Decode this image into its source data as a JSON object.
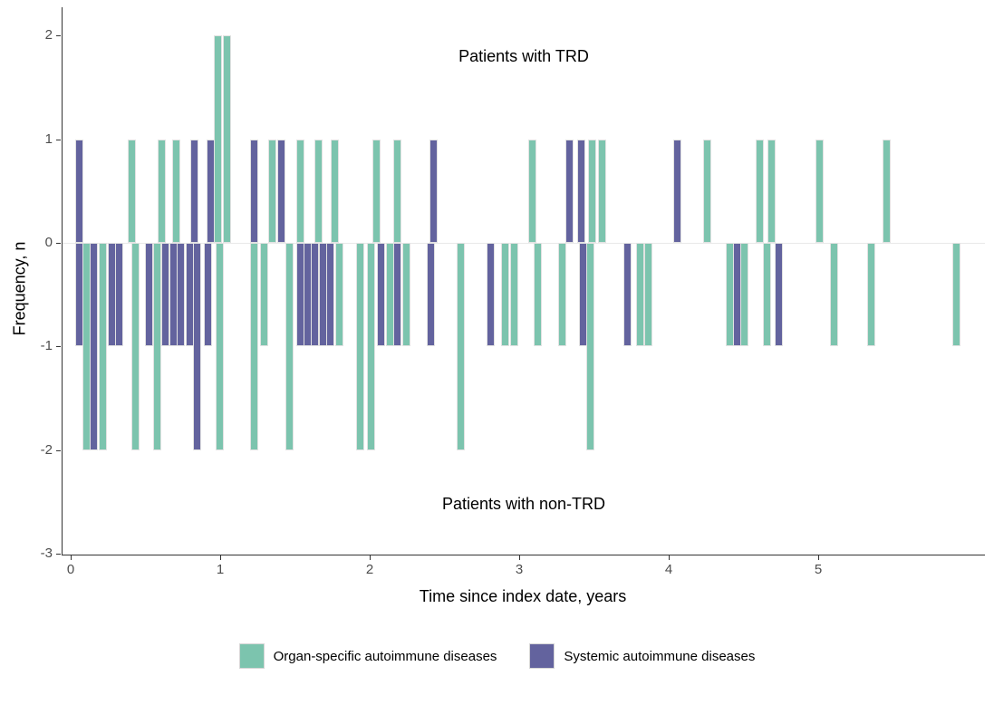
{
  "chart_data": {
    "type": "bar",
    "title": "",
    "xlabel": "Time since index date, years",
    "ylabel": "Frequency, n",
    "xlim": [
      0,
      6.15
    ],
    "ylim": [
      -3,
      2
    ],
    "grid": "off",
    "legend_position": "bottom",
    "x_ticks": [
      0,
      1,
      2,
      3,
      4,
      5
    ],
    "y_ticks": [
      2,
      1,
      0,
      -1,
      -2,
      -3
    ],
    "annotations": {
      "top": "Patients with TRD",
      "bottom": "Patients with non-TRD"
    },
    "legend": [
      {
        "key": "organ",
        "label": "Organ-specific autoimmune diseases",
        "color": "#7CC4AE"
      },
      {
        "key": "systemic",
        "label": "Systemic autoimmune diseases",
        "color": "#63639E"
      }
    ],
    "series_colors": {
      "organ": "#7CC4AE",
      "systemic": "#63639E"
    },
    "bars": [
      {
        "x": 0.05,
        "n": 1,
        "series": "systemic"
      },
      {
        "x": 0.4,
        "n": 1,
        "series": "organ"
      },
      {
        "x": 0.6,
        "n": 1,
        "series": "organ"
      },
      {
        "x": 0.7,
        "n": 1,
        "series": "organ"
      },
      {
        "x": 0.82,
        "n": 1,
        "series": "systemic"
      },
      {
        "x": 0.93,
        "n": 1,
        "series": "systemic"
      },
      {
        "x": 0.98,
        "n": 2,
        "series": "organ"
      },
      {
        "x": 1.04,
        "n": 2,
        "series": "organ"
      },
      {
        "x": 1.22,
        "n": 1,
        "series": "systemic"
      },
      {
        "x": 1.34,
        "n": 1,
        "series": "organ"
      },
      {
        "x": 1.4,
        "n": 1,
        "series": "systemic"
      },
      {
        "x": 1.53,
        "n": 1,
        "series": "organ"
      },
      {
        "x": 1.65,
        "n": 1,
        "series": "organ"
      },
      {
        "x": 1.76,
        "n": 1,
        "series": "organ"
      },
      {
        "x": 2.04,
        "n": 1,
        "series": "organ"
      },
      {
        "x": 2.18,
        "n": 1,
        "series": "organ"
      },
      {
        "x": 2.42,
        "n": 1,
        "series": "systemic"
      },
      {
        "x": 3.08,
        "n": 1,
        "series": "organ"
      },
      {
        "x": 3.33,
        "n": 1,
        "series": "systemic"
      },
      {
        "x": 3.41,
        "n": 1,
        "series": "systemic"
      },
      {
        "x": 3.48,
        "n": 1,
        "series": "organ"
      },
      {
        "x": 3.55,
        "n": 1,
        "series": "organ"
      },
      {
        "x": 4.05,
        "n": 1,
        "series": "systemic"
      },
      {
        "x": 4.25,
        "n": 1,
        "series": "organ"
      },
      {
        "x": 4.6,
        "n": 1,
        "series": "organ"
      },
      {
        "x": 4.68,
        "n": 1,
        "series": "organ"
      },
      {
        "x": 5.0,
        "n": 1,
        "series": "organ"
      },
      {
        "x": 5.45,
        "n": 1,
        "series": "organ"
      },
      {
        "x": 0.05,
        "n": -1,
        "series": "systemic"
      },
      {
        "x": 0.1,
        "n": -2,
        "series": "organ"
      },
      {
        "x": 0.15,
        "n": -2,
        "series": "systemic"
      },
      {
        "x": 0.21,
        "n": -2,
        "series": "organ"
      },
      {
        "x": 0.27,
        "n": -1,
        "series": "systemic"
      },
      {
        "x": 0.32,
        "n": -1,
        "series": "systemic"
      },
      {
        "x": 0.43,
        "n": -2,
        "series": "organ"
      },
      {
        "x": 0.52,
        "n": -1,
        "series": "systemic"
      },
      {
        "x": 0.57,
        "n": -2,
        "series": "organ"
      },
      {
        "x": 0.63,
        "n": -1,
        "series": "systemic"
      },
      {
        "x": 0.68,
        "n": -1,
        "series": "systemic"
      },
      {
        "x": 0.73,
        "n": -1,
        "series": "systemic"
      },
      {
        "x": 0.79,
        "n": -1,
        "series": "systemic"
      },
      {
        "x": 0.84,
        "n": -2,
        "series": "systemic"
      },
      {
        "x": 0.91,
        "n": -1,
        "series": "systemic"
      },
      {
        "x": 0.99,
        "n": -2,
        "series": "organ"
      },
      {
        "x": 1.22,
        "n": -2,
        "series": "organ"
      },
      {
        "x": 1.29,
        "n": -1,
        "series": "organ"
      },
      {
        "x": 1.46,
        "n": -2,
        "series": "organ"
      },
      {
        "x": 1.53,
        "n": -1,
        "series": "systemic"
      },
      {
        "x": 1.58,
        "n": -1,
        "series": "systemic"
      },
      {
        "x": 1.63,
        "n": -1,
        "series": "systemic"
      },
      {
        "x": 1.68,
        "n": -1,
        "series": "systemic"
      },
      {
        "x": 1.73,
        "n": -1,
        "series": "systemic"
      },
      {
        "x": 1.79,
        "n": -1,
        "series": "organ"
      },
      {
        "x": 1.93,
        "n": -2,
        "series": "organ"
      },
      {
        "x": 2.0,
        "n": -2,
        "series": "organ"
      },
      {
        "x": 2.07,
        "n": -1,
        "series": "systemic"
      },
      {
        "x": 2.13,
        "n": -1,
        "series": "organ"
      },
      {
        "x": 2.18,
        "n": -1,
        "series": "systemic"
      },
      {
        "x": 2.24,
        "n": -1,
        "series": "organ"
      },
      {
        "x": 2.4,
        "n": -1,
        "series": "systemic"
      },
      {
        "x": 2.6,
        "n": -2,
        "series": "organ"
      },
      {
        "x": 2.8,
        "n": -1,
        "series": "systemic"
      },
      {
        "x": 2.9,
        "n": -1,
        "series": "organ"
      },
      {
        "x": 2.96,
        "n": -1,
        "series": "organ"
      },
      {
        "x": 3.12,
        "n": -1,
        "series": "organ"
      },
      {
        "x": 3.28,
        "n": -1,
        "series": "organ"
      },
      {
        "x": 3.42,
        "n": -1,
        "series": "systemic"
      },
      {
        "x": 3.47,
        "n": -2,
        "series": "organ"
      },
      {
        "x": 3.72,
        "n": -1,
        "series": "systemic"
      },
      {
        "x": 3.8,
        "n": -1,
        "series": "organ"
      },
      {
        "x": 3.86,
        "n": -1,
        "series": "organ"
      },
      {
        "x": 4.4,
        "n": -1,
        "series": "organ"
      },
      {
        "x": 4.45,
        "n": -1,
        "series": "systemic"
      },
      {
        "x": 4.5,
        "n": -1,
        "series": "organ"
      },
      {
        "x": 4.65,
        "n": -1,
        "series": "organ"
      },
      {
        "x": 4.73,
        "n": -1,
        "series": "systemic"
      },
      {
        "x": 5.1,
        "n": -1,
        "series": "organ"
      },
      {
        "x": 5.35,
        "n": -1,
        "series": "organ"
      },
      {
        "x": 5.92,
        "n": -1,
        "series": "organ"
      }
    ]
  }
}
